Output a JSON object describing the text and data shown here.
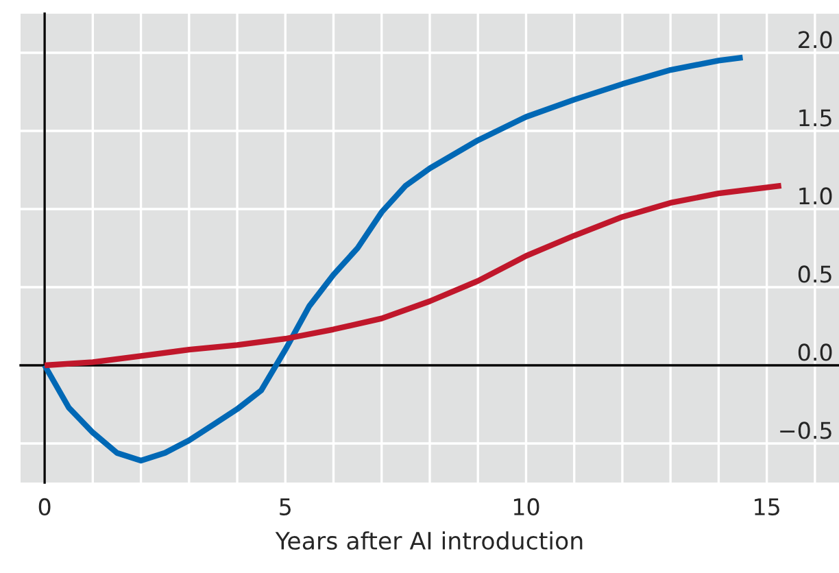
{
  "chart_data": {
    "type": "line",
    "xlabel": "Years after AI introduction",
    "x": [
      0,
      0.5,
      1,
      1.5,
      2,
      2.5,
      3,
      3.5,
      4,
      4.5,
      5,
      5.5,
      6,
      6.5,
      7,
      7.5,
      8,
      9,
      10,
      11,
      12,
      13,
      14,
      14.5
    ],
    "series": [
      {
        "color": "#0068b5",
        "values": [
          0,
          -0.27,
          -0.43,
          -0.56,
          -0.61,
          -0.56,
          -0.48,
          -0.38,
          -0.28,
          -0.16,
          0.1,
          0.38,
          0.58,
          0.75,
          0.98,
          1.15,
          1.26,
          1.44,
          1.59,
          1.7,
          1.8,
          1.89,
          1.95,
          1.97
        ]
      },
      {
        "color": "#c0172b",
        "x": [
          0,
          1,
          2,
          3,
          4,
          5,
          6,
          7,
          8,
          9,
          10,
          11,
          12,
          13,
          14,
          15.3
        ],
        "values": [
          0,
          0.02,
          0.06,
          0.1,
          0.13,
          0.17,
          0.23,
          0.3,
          0.41,
          0.54,
          0.7,
          0.83,
          0.95,
          1.04,
          1.1,
          1.15
        ]
      }
    ],
    "xlim": [
      -0.5,
      16.5
    ],
    "ylim": [
      -0.75,
      2.25
    ],
    "xticks": [
      0,
      {
        "value": 1,
        "label": null
      },
      {
        "value": 2,
        "label": null
      },
      {
        "value": 3,
        "label": null
      },
      {
        "value": 4,
        "label": null
      },
      5,
      {
        "value": 6,
        "label": null
      },
      {
        "value": 7,
        "label": null
      },
      {
        "value": 8,
        "label": null
      },
      {
        "value": 9,
        "label": null
      },
      10,
      {
        "value": 11,
        "label": null
      },
      {
        "value": 12,
        "label": null
      },
      {
        "value": 13,
        "label": null
      },
      {
        "value": 14,
        "label": null
      },
      15,
      {
        "value": 16,
        "label": null
      }
    ],
    "yticks": [
      {
        "value": -0.5,
        "label": "−0.5"
      },
      {
        "value": 0,
        "label": "0.0"
      },
      {
        "value": 0.5,
        "label": "0.5"
      },
      {
        "value": 1,
        "label": "1.0"
      },
      {
        "value": 1.5,
        "label": "1.5"
      },
      {
        "value": 2,
        "label": "2.0"
      }
    ],
    "grid": true,
    "line_style": "solid",
    "marker": "none"
  }
}
